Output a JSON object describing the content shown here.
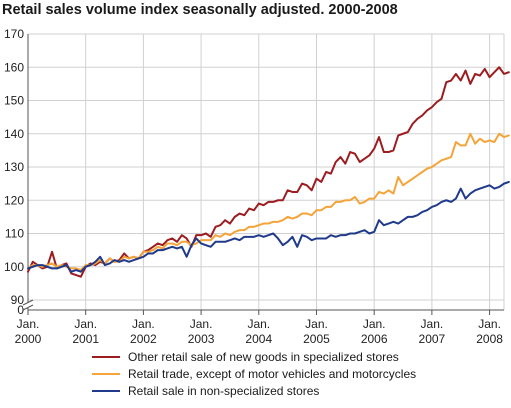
{
  "chart_data": {
    "type": "line",
    "title": "Retail sales volume index seasonally adjusted. 2000-2008",
    "xlabel": "",
    "ylabel": "",
    "ylim": [
      90,
      170
    ],
    "yticks": [
      90,
      100,
      110,
      120,
      130,
      140,
      150,
      160,
      170
    ],
    "zero_label": "0",
    "axis_break": true,
    "grid": true,
    "legend_position": "bottom",
    "x_start": "2000-01",
    "x_end": "2008-04",
    "x_ticks": [
      {
        "line1": "Jan.",
        "line2": "2000",
        "date": "2000-01"
      },
      {
        "line1": "Jan.",
        "line2": "2001",
        "date": "2001-01"
      },
      {
        "line1": "Jan.",
        "line2": "2002",
        "date": "2002-01"
      },
      {
        "line1": "Jan.",
        "line2": "2003",
        "date": "2003-01"
      },
      {
        "line1": "Jan.",
        "line2": "2004",
        "date": "2004-01"
      },
      {
        "line1": "Jan.",
        "line2": "2005",
        "date": "2005-01"
      },
      {
        "line1": "Jan.",
        "line2": "2006",
        "date": "2006-01"
      },
      {
        "line1": "Jan.",
        "line2": "2007",
        "date": "2007-01"
      },
      {
        "line1": "Jan.",
        "line2": "2008",
        "date": "2008-01"
      }
    ],
    "series": [
      {
        "name": "Other retail sale of new goods in specialized stores",
        "color": "#9c1c20",
        "values": [
          98.5,
          101.5,
          100.5,
          99.5,
          100,
          104.5,
          99.5,
          100.5,
          101,
          98,
          97.5,
          97,
          100,
          101,
          100.5,
          101.5,
          101,
          102.5,
          101.5,
          102,
          104,
          102.5,
          103,
          102.5,
          104.5,
          105,
          106,
          107,
          106.5,
          108,
          108.5,
          107.5,
          109.5,
          108.5,
          106,
          109.5,
          109.5,
          110,
          109,
          112,
          112.5,
          114,
          113,
          115,
          116,
          115.5,
          117.5,
          117,
          119,
          118.5,
          119.5,
          119.5,
          120,
          120,
          123,
          122.5,
          122.5,
          125,
          124.5,
          123,
          126.5,
          125.5,
          128.5,
          128,
          131.5,
          133,
          131,
          134.5,
          134,
          131.5,
          132.5,
          133.5,
          135.5,
          139,
          134.5,
          134.5,
          135,
          139.5,
          140,
          140.5,
          143,
          144.5,
          145.5,
          147,
          148,
          149.5,
          150.5,
          155.5,
          156,
          158,
          156,
          159,
          155,
          158,
          157.5,
          159.5,
          157,
          158.5,
          160,
          158,
          158.5
        ]
      },
      {
        "name": "Retail trade, except of motor vehicles and motorcycles",
        "color": "#f5a43a",
        "values": [
          99.5,
          100.5,
          100.5,
          100,
          100.5,
          101,
          100,
          100.5,
          100,
          99.5,
          99.5,
          99,
          100.5,
          100.5,
          101,
          102,
          101,
          102.5,
          101.5,
          101.5,
          103,
          102.5,
          103,
          102.5,
          104.5,
          104.5,
          105,
          106,
          105.5,
          107,
          107,
          106.5,
          107.5,
          107.5,
          106.5,
          107,
          108,
          108,
          108,
          109.5,
          109,
          110,
          109.5,
          110.5,
          111,
          111,
          112,
          112,
          112.5,
          113,
          113,
          113.5,
          113.5,
          114,
          115,
          114.5,
          115,
          116,
          116,
          115.5,
          117,
          117,
          118,
          118,
          119.5,
          119.5,
          120,
          120,
          121,
          119,
          119.5,
          120.5,
          120.5,
          122.5,
          122,
          123,
          122,
          127,
          124.5,
          125.5,
          126.5,
          127.5,
          128.5,
          129.5,
          130,
          131,
          132,
          132.5,
          133,
          137.5,
          136.5,
          136.5,
          140,
          137,
          138.5,
          137.5,
          138,
          137.5,
          140,
          139,
          139.5
        ]
      },
      {
        "name": "Retail sale in non-specialized stores",
        "color": "#1f3a8a",
        "values": [
          99.5,
          100,
          100.5,
          100.5,
          100,
          99.5,
          99.5,
          100,
          100.5,
          98.5,
          99,
          98.5,
          100,
          100.5,
          101.5,
          103,
          100.5,
          101,
          102,
          101.5,
          102,
          101.5,
          102,
          102.5,
          103,
          104,
          104,
          105,
          105,
          105.5,
          106,
          105.5,
          106,
          103,
          106.5,
          108.5,
          107,
          106.5,
          106,
          107.5,
          107.5,
          107.5,
          108,
          108.5,
          108,
          109,
          109,
          109,
          109.5,
          109,
          109.5,
          110,
          108.5,
          106.5,
          107.5,
          109,
          106,
          109.5,
          109,
          108,
          108.5,
          108.5,
          108.5,
          109.5,
          109,
          109.5,
          109.5,
          110,
          110,
          110.5,
          111,
          110,
          110.5,
          114,
          112.5,
          113,
          113.5,
          113,
          114,
          115,
          115,
          115.5,
          116.5,
          117,
          118,
          118.5,
          119.5,
          120,
          119.5,
          120.5,
          123.5,
          120.5,
          122,
          123,
          123.5,
          124,
          124.5,
          123.5,
          124,
          125,
          125.5
        ]
      }
    ]
  }
}
